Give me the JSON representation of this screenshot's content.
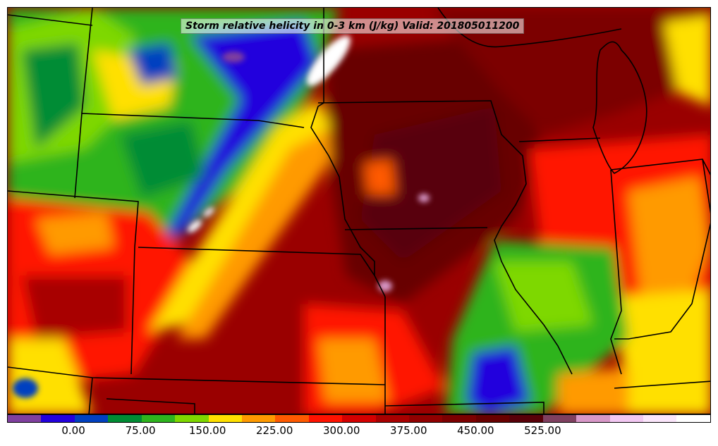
{
  "title": "Storm relative helicity in 0-3 km (J/kg) Valid: 201805011200",
  "colorbar": {
    "colors": [
      "#7f3f9f",
      "#2200dd",
      "#0040c0",
      "#008c34",
      "#2eb41e",
      "#7ed800",
      "#ffe000",
      "#ff9a00",
      "#ff5a00",
      "#ff1200",
      "#d40000",
      "#a80000",
      "#900000",
      "#7c0000",
      "#680000",
      "#580008",
      "#7f4060",
      "#d898c8",
      "#f2c8f2",
      "#fbe6fb",
      "#ffffff"
    ],
    "tick_labels": [
      "0.00",
      "75.00",
      "150.00",
      "225.00",
      "300.00",
      "375.00",
      "450.00",
      "525.00"
    ]
  },
  "legend": {
    "quantity": "Storm relative helicity in 0-3 km",
    "unit": "J/kg"
  }
}
